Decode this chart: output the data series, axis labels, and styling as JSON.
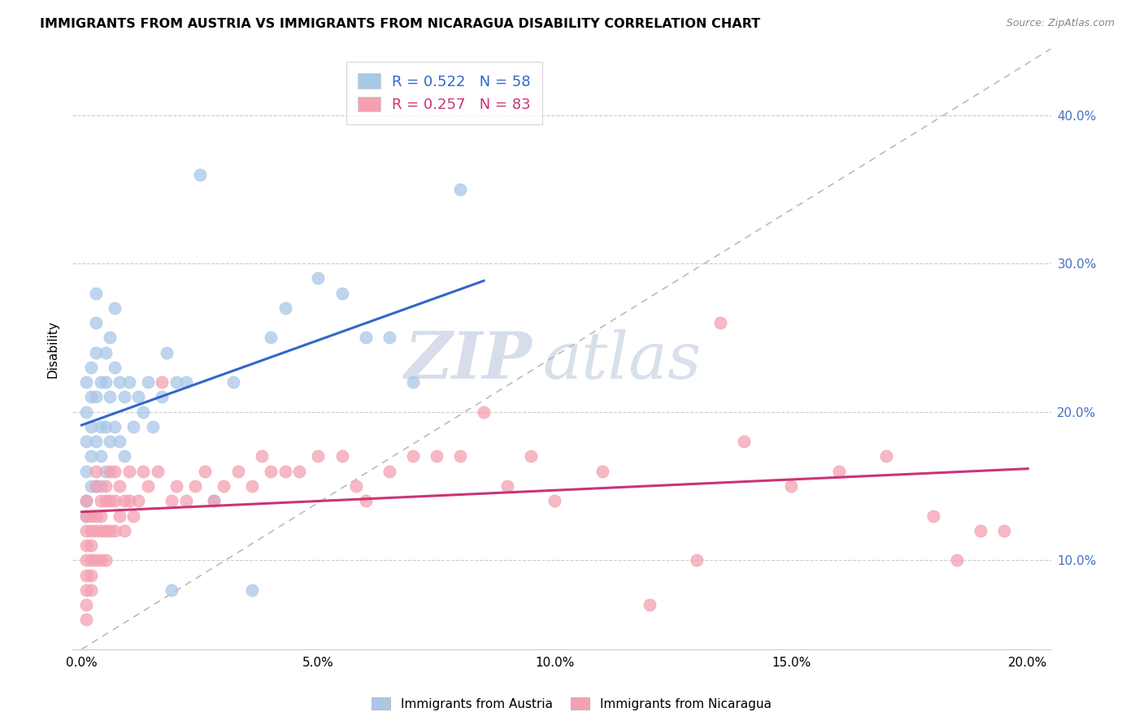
{
  "title": "IMMIGRANTS FROM AUSTRIA VS IMMIGRANTS FROM NICARAGUA DISABILITY CORRELATION CHART",
  "source": "Source: ZipAtlas.com",
  "xlabel_ticks": [
    "0.0%",
    "5.0%",
    "10.0%",
    "15.0%",
    "20.0%"
  ],
  "xlabel_tick_vals": [
    0.0,
    0.05,
    0.1,
    0.15,
    0.2
  ],
  "ylabel_ticks": [
    "10.0%",
    "20.0%",
    "30.0%",
    "40.0%"
  ],
  "ylabel_tick_vals": [
    0.1,
    0.2,
    0.3,
    0.4
  ],
  "xlim": [
    -0.002,
    0.205
  ],
  "ylim": [
    0.04,
    0.445
  ],
  "austria_R": 0.522,
  "austria_N": 58,
  "nicaragua_R": 0.257,
  "nicaragua_N": 83,
  "austria_color": "#a8c8e8",
  "nicaragua_color": "#f4a0b0",
  "austria_line_color": "#3366cc",
  "nicaragua_line_color": "#cc3377",
  "trendline_dash_color": "#bbbbbb",
  "watermark_zip": "ZIP",
  "watermark_atlas": "atlas",
  "austria_x": [
    0.001,
    0.001,
    0.001,
    0.001,
    0.001,
    0.001,
    0.002,
    0.002,
    0.002,
    0.002,
    0.002,
    0.003,
    0.003,
    0.003,
    0.003,
    0.003,
    0.003,
    0.004,
    0.004,
    0.004,
    0.004,
    0.005,
    0.005,
    0.005,
    0.005,
    0.006,
    0.006,
    0.006,
    0.007,
    0.007,
    0.007,
    0.008,
    0.008,
    0.009,
    0.009,
    0.01,
    0.011,
    0.012,
    0.013,
    0.014,
    0.015,
    0.017,
    0.018,
    0.019,
    0.02,
    0.022,
    0.025,
    0.028,
    0.032,
    0.036,
    0.04,
    0.043,
    0.05,
    0.055,
    0.06,
    0.065,
    0.07,
    0.08
  ],
  "austria_y": [
    0.22,
    0.2,
    0.18,
    0.16,
    0.14,
    0.13,
    0.23,
    0.21,
    0.19,
    0.17,
    0.15,
    0.28,
    0.26,
    0.24,
    0.21,
    0.18,
    0.15,
    0.22,
    0.19,
    0.17,
    0.15,
    0.24,
    0.22,
    0.19,
    0.16,
    0.25,
    0.21,
    0.18,
    0.27,
    0.23,
    0.19,
    0.22,
    0.18,
    0.21,
    0.17,
    0.22,
    0.19,
    0.21,
    0.2,
    0.22,
    0.19,
    0.21,
    0.24,
    0.08,
    0.22,
    0.22,
    0.36,
    0.14,
    0.22,
    0.08,
    0.25,
    0.27,
    0.29,
    0.28,
    0.25,
    0.25,
    0.22,
    0.35
  ],
  "nicaragua_x": [
    0.001,
    0.001,
    0.001,
    0.001,
    0.001,
    0.001,
    0.001,
    0.001,
    0.001,
    0.002,
    0.002,
    0.002,
    0.002,
    0.002,
    0.002,
    0.003,
    0.003,
    0.003,
    0.003,
    0.003,
    0.004,
    0.004,
    0.004,
    0.004,
    0.005,
    0.005,
    0.005,
    0.005,
    0.006,
    0.006,
    0.006,
    0.007,
    0.007,
    0.007,
    0.008,
    0.008,
    0.009,
    0.009,
    0.01,
    0.01,
    0.011,
    0.012,
    0.013,
    0.014,
    0.016,
    0.017,
    0.019,
    0.02,
    0.022,
    0.024,
    0.026,
    0.028,
    0.03,
    0.033,
    0.036,
    0.038,
    0.04,
    0.043,
    0.046,
    0.05,
    0.055,
    0.058,
    0.06,
    0.065,
    0.07,
    0.075,
    0.08,
    0.085,
    0.09,
    0.095,
    0.1,
    0.11,
    0.12,
    0.13,
    0.135,
    0.14,
    0.15,
    0.16,
    0.17,
    0.18,
    0.185,
    0.19,
    0.195
  ],
  "nicaragua_y": [
    0.14,
    0.13,
    0.12,
    0.11,
    0.1,
    0.09,
    0.08,
    0.07,
    0.06,
    0.13,
    0.12,
    0.11,
    0.1,
    0.09,
    0.08,
    0.16,
    0.15,
    0.13,
    0.12,
    0.1,
    0.14,
    0.13,
    0.12,
    0.1,
    0.15,
    0.14,
    0.12,
    0.1,
    0.16,
    0.14,
    0.12,
    0.16,
    0.14,
    0.12,
    0.15,
    0.13,
    0.14,
    0.12,
    0.16,
    0.14,
    0.13,
    0.14,
    0.16,
    0.15,
    0.16,
    0.22,
    0.14,
    0.15,
    0.14,
    0.15,
    0.16,
    0.14,
    0.15,
    0.16,
    0.15,
    0.17,
    0.16,
    0.16,
    0.16,
    0.17,
    0.17,
    0.15,
    0.14,
    0.16,
    0.17,
    0.17,
    0.17,
    0.2,
    0.15,
    0.17,
    0.14,
    0.16,
    0.07,
    0.1,
    0.26,
    0.18,
    0.15,
    0.16,
    0.17,
    0.13,
    0.1,
    0.12,
    0.12
  ]
}
